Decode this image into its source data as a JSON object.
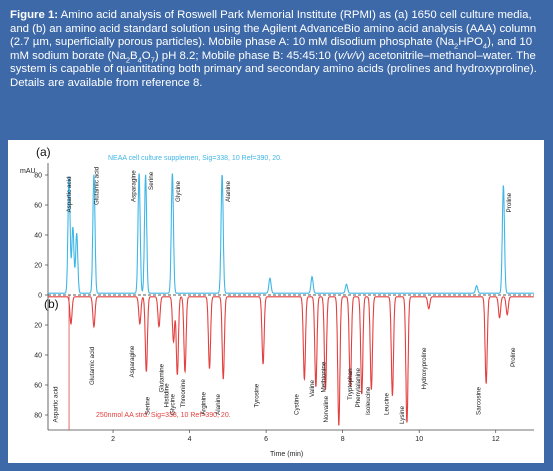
{
  "caption": {
    "figure_label": "Figure 1:",
    "segments": [
      {
        "t": " Amino acid analysis of Roswell Park Memorial Institute (RPMI) as (a) 1650 cell culture media, and (b) an amino acid standard solution using the Agilent AdvanceBio amino acid analysis (AAA) column (2.7 µm, superficially porous particles). Mobile phase A: 10 mM disodium phosphate (Na"
      },
      {
        "t": "2",
        "sub": true
      },
      {
        "t": "HPO"
      },
      {
        "t": "4",
        "sub": true
      },
      {
        "t": "), and 10 mM sodium borate (Na"
      },
      {
        "t": "2",
        "sub": true
      },
      {
        "t": "B"
      },
      {
        "t": "4",
        "sub": true
      },
      {
        "t": "O"
      },
      {
        "t": "7",
        "sub": true
      },
      {
        "t": ") pH 8.2; Mobile phase B: 45:45:10 ("
      },
      {
        "t": "v/v/v",
        "i": true
      },
      {
        "t": ") acetonitrile–methanol–water. The system is capable of quantitating both primary and secondary amino acids (prolines and hydroxyproline). Details are available from reference 8."
      }
    ]
  },
  "colors": {
    "frame": "#3d69a8",
    "trace_a": "#3fb6e6",
    "trace_b": "#e2413f",
    "axis": "#444444",
    "zero_line": "#222222"
  },
  "chart_data": {
    "type": "line",
    "xlabel": "Time (min)",
    "ylabel": "mAU",
    "xlim": [
      0.3,
      13.0
    ],
    "ylim": [
      -90,
      88
    ],
    "x_ticks": [
      2,
      4,
      6,
      8,
      10,
      12
    ],
    "y_ticks": [
      80,
      60,
      40,
      20,
      0,
      20,
      40,
      60,
      80
    ],
    "y_tick_values": [
      80,
      60,
      40,
      20,
      0,
      -20,
      -40,
      -60,
      -80
    ],
    "panels": [
      {
        "label": "(a)",
        "series_name": "NEAA cell culture supplemen, Sig=338, 10 Ref=390, 20.",
        "direction": "up",
        "peaks": [
          {
            "name": "Aspartic acid",
            "x": 0.85,
            "h": 78
          },
          {
            "name": "",
            "x": 0.95,
            "h": 44
          },
          {
            "name": "",
            "x": 1.05,
            "h": 40
          },
          {
            "name": "Glutamic acid",
            "x": 1.5,
            "h": 79
          },
          {
            "name": "Asparagine",
            "x": 2.68,
            "h": 80
          },
          {
            "name": "Serine",
            "x": 2.85,
            "h": 79
          },
          {
            "name": "Glycine",
            "x": 3.55,
            "h": 80
          },
          {
            "name": "Alanine",
            "x": 4.85,
            "h": 79
          },
          {
            "name": "",
            "x": 6.1,
            "h": 10
          },
          {
            "name": "",
            "x": 7.2,
            "h": 11
          },
          {
            "name": "",
            "x": 8.1,
            "h": 6
          },
          {
            "name": "",
            "x": 11.5,
            "h": 5
          },
          {
            "name": "Proline",
            "x": 12.2,
            "h": 72
          }
        ]
      },
      {
        "label": "(b)",
        "series_name": "250nmol AA strd. Sig=338, 10 Ref=390, 20.",
        "direction": "down",
        "peaks": [
          {
            "name": "Aspartic acid",
            "x": 0.9,
            "h": 18
          },
          {
            "name": "Glutamic acid",
            "x": 1.5,
            "h": 20
          },
          {
            "name": "Asparagine",
            "x": 2.7,
            "h": 18
          },
          {
            "name": "Serine",
            "x": 2.87,
            "h": 50
          },
          {
            "name": "Glutamine",
            "x": 3.2,
            "h": 20
          },
          {
            "name": "Histidine",
            "x": 3.58,
            "h": 30
          },
          {
            "name": "Glycine",
            "x": 3.68,
            "h": 52
          },
          {
            "name": "Threonine",
            "x": 3.88,
            "h": 50
          },
          {
            "name": "Arginine",
            "x": 4.52,
            "h": 48
          },
          {
            "name": "Alanine",
            "x": 4.88,
            "h": 55
          },
          {
            "name": "Tyrosine",
            "x": 5.92,
            "h": 45
          },
          {
            "name": "Cystine",
            "x": 7.0,
            "h": 55
          },
          {
            "name": "Valine",
            "x": 7.3,
            "h": 60
          },
          {
            "name": "Methionine",
            "x": 7.55,
            "h": 62
          },
          {
            "name": "Norvaline",
            "x": 7.9,
            "h": 86
          },
          {
            "name": "Tryptophan",
            "x": 8.2,
            "h": 60
          },
          {
            "name": "Phenylalanine",
            "x": 8.5,
            "h": 65
          },
          {
            "name": "Isoleucine",
            "x": 8.75,
            "h": 62
          },
          {
            "name": "Leucine",
            "x": 9.3,
            "h": 66
          },
          {
            "name": "Lysine",
            "x": 9.68,
            "h": 84
          },
          {
            "name": "Hydroxyproline",
            "x": 10.25,
            "h": 8
          },
          {
            "name": "Sarcosine",
            "x": 11.75,
            "h": 58
          },
          {
            "name": "Proline",
            "x": 12.1,
            "h": 14
          },
          {
            "name": "",
            "x": 12.3,
            "h": 12
          }
        ]
      }
    ],
    "labels_a": [
      {
        "text": "Aspartic acid",
        "x": 0.9,
        "y": 55
      },
      {
        "text": "Glutamic acid",
        "x": 1.62,
        "y": 60
      },
      {
        "text": "Asparagine",
        "x": 2.58,
        "y": 62
      },
      {
        "text": "Serine",
        "x": 3.05,
        "y": 70
      },
      {
        "text": "Glycine",
        "x": 3.75,
        "y": 62
      },
      {
        "text": "Alanine",
        "x": 5.05,
        "y": 62
      },
      {
        "text": "Proline",
        "x": 12.4,
        "y": 55
      }
    ],
    "labels_b": [
      {
        "text": "Aspartic acid",
        "x": 0.55,
        "y": -85
      },
      {
        "text": "Glutamic acid",
        "x": 1.5,
        "y": -60
      },
      {
        "text": "Asparagine",
        "x": 2.55,
        "y": -55
      },
      {
        "text": "Serine",
        "x": 2.95,
        "y": -80
      },
      {
        "text": "Glutamine",
        "x": 3.32,
        "y": -65
      },
      {
        "text": "Histidine",
        "x": 3.45,
        "y": -75
      },
      {
        "text": "Glycine",
        "x": 3.6,
        "y": -80
      },
      {
        "text": "Threonine",
        "x": 3.88,
        "y": -75
      },
      {
        "text": "Arginine",
        "x": 4.42,
        "y": -80
      },
      {
        "text": "Alanine",
        "x": 4.8,
        "y": -80
      },
      {
        "text": "Tyrosine",
        "x": 5.8,
        "y": -75
      },
      {
        "text": "Cystine",
        "x": 6.85,
        "y": -80
      },
      {
        "text": "Valine",
        "x": 7.25,
        "y": -68
      },
      {
        "text": "Methionine",
        "x": 7.55,
        "y": -65
      },
      {
        "text": "Norvaline",
        "x": 7.62,
        "y": -85
      },
      {
        "text": "Tryptophan",
        "x": 8.25,
        "y": -70
      },
      {
        "text": "Phenylalanine",
        "x": 8.45,
        "y": -75
      },
      {
        "text": "Isoleucine",
        "x": 8.72,
        "y": -80
      },
      {
        "text": "Leucine",
        "x": 9.2,
        "y": -80
      },
      {
        "text": "Lysine",
        "x": 9.6,
        "y": -86
      },
      {
        "text": "Hydroxyproline",
        "x": 10.18,
        "y": -63
      },
      {
        "text": "Sarcosine",
        "x": 11.6,
        "y": -80
      },
      {
        "text": "Proline",
        "x": 12.5,
        "y": -48
      }
    ]
  }
}
